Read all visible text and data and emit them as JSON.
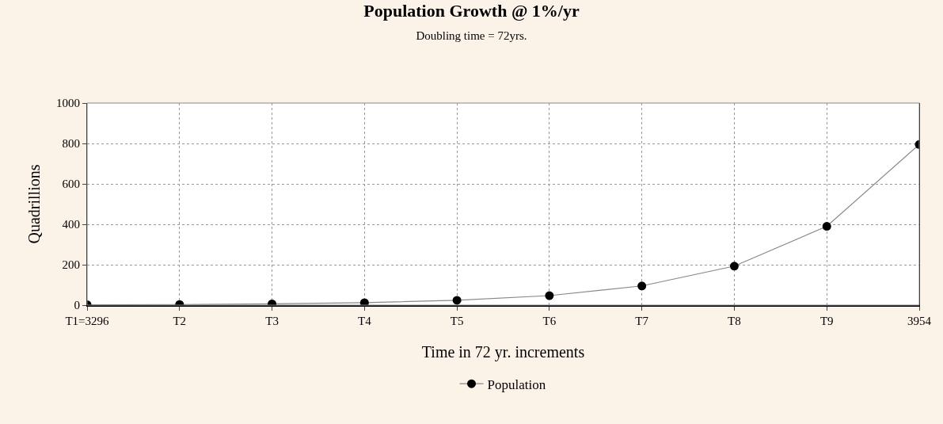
{
  "chart_data": {
    "type": "line",
    "title": "Population Growth @ 1%/yr",
    "subtitle": "Doubling time = 72yrs.",
    "xlabel": "Time in 72 yr. increments",
    "ylabel": "Quadrillions",
    "categories": [
      "T1=3296",
      "T2",
      "T3",
      "T4",
      "T5",
      "T6",
      "T7",
      "T8",
      "T9",
      "3954"
    ],
    "series": [
      {
        "name": "Population",
        "color": "#000000",
        "values": [
          2,
          3,
          6,
          12,
          24,
          47,
          95,
          193,
          390,
          795
        ]
      }
    ],
    "ylim": [
      0,
      1000
    ],
    "yticks": [
      0,
      200,
      400,
      600,
      800,
      1000
    ],
    "grid": true,
    "legend": "bottom",
    "marker": "circle",
    "line_style": "solid"
  }
}
